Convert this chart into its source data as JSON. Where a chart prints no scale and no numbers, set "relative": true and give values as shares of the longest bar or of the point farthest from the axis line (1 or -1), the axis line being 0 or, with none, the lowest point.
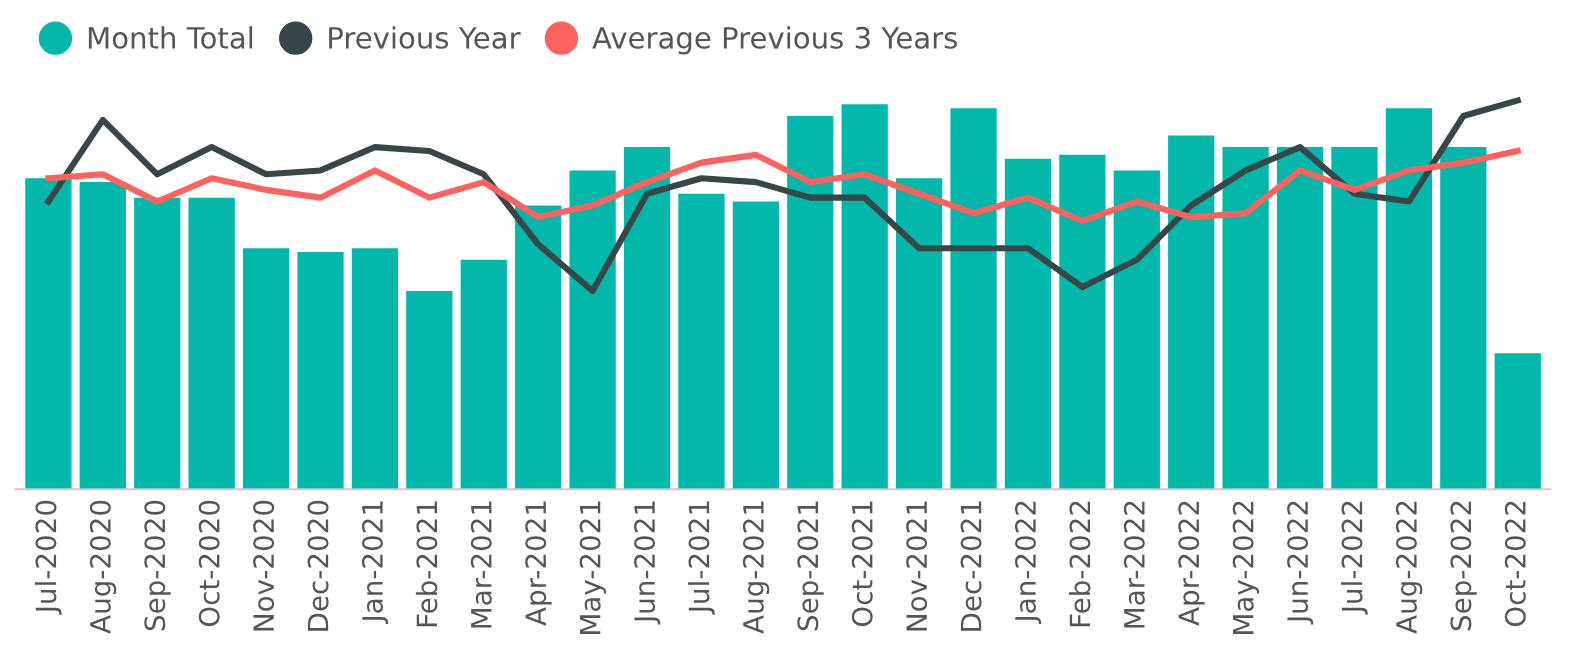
{
  "chart_data": {
    "type": "bar",
    "relative": true,
    "legend": "top left",
    "grid": false,
    "categories": [
      "Jul-2020",
      "Aug-2020",
      "Sep-2020",
      "Oct-2020",
      "Nov-2020",
      "Dec-2020",
      "Jan-2021",
      "Feb-2021",
      "Mar-2021",
      "Apr-2021",
      "May-2021",
      "Jun-2021",
      "Jul-2021",
      "Aug-2021",
      "Sep-2021",
      "Oct-2021",
      "Nov-2021",
      "Dec-2021",
      "Jan-2022",
      "Feb-2022",
      "Mar-2022",
      "Apr-2022",
      "May-2022",
      "Jun-2022",
      "Jul-2022",
      "Aug-2022",
      "Sep-2022",
      "Oct-2022"
    ],
    "series": [
      {
        "name": "Month Total",
        "color": "#01b8aa",
        "values": [
          0.8,
          0.79,
          0.75,
          0.75,
          0.62,
          0.61,
          0.62,
          0.51,
          0.59,
          0.73,
          0.82,
          0.88,
          0.76,
          0.74,
          0.96,
          0.99,
          0.8,
          0.98,
          0.85,
          0.86,
          0.82,
          0.91,
          0.88,
          0.88,
          0.88,
          0.98,
          0.88,
          0.35
        ]
      },
      {
        "name": "Previous Year",
        "type": "line",
        "color": "#374649",
        "values": [
          0.74,
          0.95,
          0.81,
          0.88,
          0.81,
          0.82,
          0.88,
          0.87,
          0.81,
          0.63,
          0.51,
          0.76,
          0.8,
          0.79,
          0.75,
          0.75,
          0.62,
          0.62,
          0.62,
          0.52,
          0.59,
          0.73,
          0.82,
          0.88,
          0.76,
          0.74,
          0.96,
          1.0
        ]
      },
      {
        "name": "Average Previous 3 Years",
        "type": "line",
        "color": "#fd625e",
        "values": [
          0.8,
          0.81,
          0.74,
          0.8,
          0.77,
          0.75,
          0.82,
          0.75,
          0.79,
          0.7,
          0.73,
          0.79,
          0.84,
          0.86,
          0.79,
          0.81,
          0.76,
          0.71,
          0.75,
          0.69,
          0.74,
          0.7,
          0.71,
          0.82,
          0.77,
          0.82,
          0.84,
          0.87
        ]
      }
    ]
  }
}
